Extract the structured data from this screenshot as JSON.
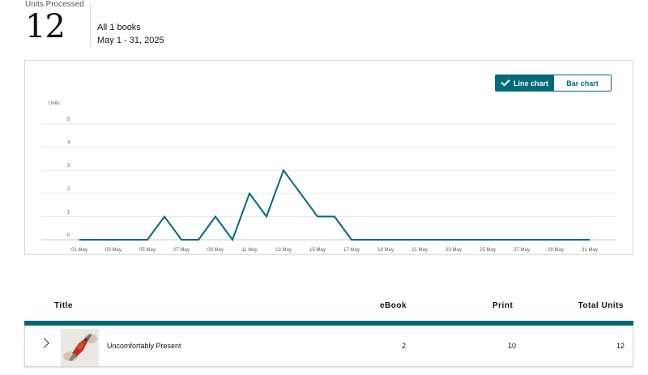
{
  "summary": {
    "units_label": "Units Processed",
    "units_value": "12",
    "scope": "All 1 books",
    "date_range": "May 1 - 31, 2025"
  },
  "chart_toggle": {
    "line_label": "Line chart",
    "bar_label": "Bar chart",
    "selected": "line"
  },
  "chart_data": {
    "type": "line",
    "ylabel": "Units",
    "ylim": [
      0,
      5
    ],
    "yticks": [
      "0",
      "1",
      "2",
      "3",
      "4",
      "5"
    ],
    "x_tick_labels": [
      "01 May",
      "03 May",
      "05 May",
      "07 May",
      "09 May",
      "11 May",
      "13 May",
      "15 May",
      "17 May",
      "19 May",
      "21 May",
      "23 May",
      "25 May",
      "27 May",
      "29 May",
      "31 May"
    ],
    "x": [
      1,
      2,
      3,
      4,
      5,
      6,
      7,
      8,
      9,
      10,
      11,
      12,
      13,
      14,
      15,
      16,
      17,
      18,
      19,
      20,
      21,
      22,
      23,
      24,
      25,
      26,
      27,
      28,
      29,
      30,
      31
    ],
    "values": [
      0,
      0,
      0,
      0,
      0,
      1,
      0,
      0,
      1,
      0,
      2,
      1,
      3,
      2,
      1,
      1,
      0,
      0,
      0,
      0,
      0,
      0,
      0,
      0,
      0,
      0,
      0,
      0,
      0,
      0,
      0
    ],
    "line_color": "#00697a",
    "grid": true,
    "legend": "none"
  },
  "table": {
    "headers": {
      "title": "Title",
      "ebook": "eBook",
      "print": "Print",
      "total": "Total Units"
    },
    "rows": [
      {
        "title": "Uncomfortably Present",
        "ebook": "2",
        "print": "10",
        "total": "12"
      }
    ]
  },
  "colors": {
    "accent": "#00697a",
    "border": "#d5d9d9",
    "grid": "#e3e6e6"
  },
  "icons": {
    "toggle_check": "checkmark-icon",
    "row_expand": "chevron-right-icon"
  }
}
